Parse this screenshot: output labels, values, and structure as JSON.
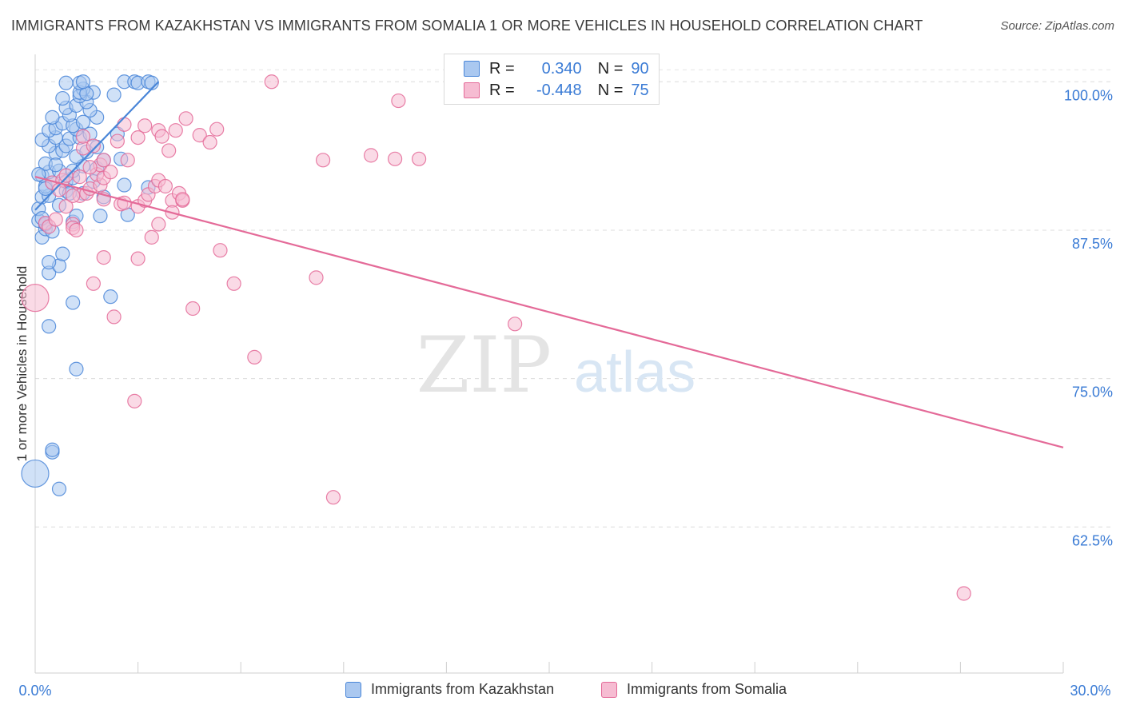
{
  "title": "IMMIGRANTS FROM KAZAKHSTAN VS IMMIGRANTS FROM SOMALIA 1 OR MORE VEHICLES IN HOUSEHOLD CORRELATION CHART",
  "source": "Source: ZipAtlas.com",
  "watermark": {
    "zip": "ZIP",
    "atlas": "atlas"
  },
  "legend_top": {
    "rows": [
      {
        "r_label": "R =",
        "r_value": "0.340",
        "n_label": "N =",
        "n_value": "90",
        "color": "#4a86d8",
        "fill": "#aac8f0"
      },
      {
        "r_label": "R =",
        "r_value": "-0.448",
        "n_label": "N =",
        "n_value": "75",
        "color": "#e46a98",
        "fill": "#f6bcd2"
      }
    ]
  },
  "legend_bottom": [
    "Immigrants from Kazakhstan",
    "Immigrants from Somalia"
  ],
  "chart_data": {
    "type": "scatter",
    "title": "IMMIGRANTS FROM KAZAKHSTAN VS IMMIGRANTS FROM SOMALIA 1 OR MORE VEHICLES IN HOUSEHOLD CORRELATION CHART",
    "xlabel": "",
    "ylabel": "1 or more Vehicles in Household",
    "xlim": [
      0,
      30
    ],
    "ylim": [
      50.2,
      101.5
    ],
    "x_tick_labels": [
      "0.0%",
      "30.0%"
    ],
    "y_ticks": [
      62.5,
      75.0,
      87.5,
      100.0
    ],
    "y_tick_labels": [
      "62.5%",
      "75.0%",
      "87.5%",
      "100.0%"
    ],
    "grid": true,
    "legend": "top-center",
    "series": [
      {
        "name": "Immigrants from Kazakhstan",
        "color": "#4a86d8",
        "fill": "#aac8f0",
        "trend": {
          "x": [
            0.0,
            3.6
          ],
          "y": [
            89.2,
            100.0
          ]
        },
        "points": [
          [
            0.0,
            67.0
          ],
          [
            0.5,
            68.8
          ],
          [
            0.5,
            69.0
          ],
          [
            0.7,
            65.7
          ],
          [
            1.2,
            75.8
          ],
          [
            0.4,
            79.4
          ],
          [
            1.1,
            81.4
          ],
          [
            2.2,
            81.9
          ],
          [
            0.4,
            83.9
          ],
          [
            0.7,
            84.5
          ],
          [
            0.8,
            85.5
          ],
          [
            0.4,
            84.8
          ],
          [
            0.2,
            86.9
          ],
          [
            0.3,
            87.6
          ],
          [
            0.1,
            88.3
          ],
          [
            0.3,
            88.0
          ],
          [
            1.1,
            88.2
          ],
          [
            1.2,
            88.7
          ],
          [
            1.9,
            88.7
          ],
          [
            2.7,
            88.8
          ],
          [
            0.1,
            89.3
          ],
          [
            0.2,
            90.3
          ],
          [
            0.4,
            90.4
          ],
          [
            0.9,
            90.8
          ],
          [
            1.4,
            90.6
          ],
          [
            2.0,
            90.3
          ],
          [
            0.3,
            91.2
          ],
          [
            0.5,
            91.5
          ],
          [
            0.9,
            91.6
          ],
          [
            1.1,
            91.9
          ],
          [
            1.7,
            91.6
          ],
          [
            2.6,
            91.3
          ],
          [
            3.3,
            91.1
          ],
          [
            0.2,
            92.1
          ],
          [
            0.4,
            92.4
          ],
          [
            0.7,
            92.5
          ],
          [
            1.1,
            92.5
          ],
          [
            1.4,
            92.9
          ],
          [
            1.8,
            92.7
          ],
          [
            2.0,
            93.4
          ],
          [
            2.5,
            93.5
          ],
          [
            0.3,
            93.1
          ],
          [
            0.6,
            94.0
          ],
          [
            0.8,
            94.2
          ],
          [
            1.2,
            93.7
          ],
          [
            1.5,
            94.1
          ],
          [
            0.4,
            94.6
          ],
          [
            0.9,
            94.6
          ],
          [
            0.2,
            95.1
          ],
          [
            0.6,
            95.3
          ],
          [
            1.0,
            95.2
          ],
          [
            1.3,
            95.3
          ],
          [
            1.6,
            95.6
          ],
          [
            2.4,
            95.6
          ],
          [
            0.4,
            95.9
          ],
          [
            0.6,
            96.1
          ],
          [
            1.2,
            96.0
          ],
          [
            0.8,
            96.5
          ],
          [
            1.1,
            96.3
          ],
          [
            1.4,
            96.6
          ],
          [
            1.8,
            97.0
          ],
          [
            0.5,
            97.0
          ],
          [
            1.0,
            97.2
          ],
          [
            1.6,
            97.6
          ],
          [
            0.9,
            97.8
          ],
          [
            1.2,
            98.0
          ],
          [
            1.5,
            98.3
          ],
          [
            0.8,
            98.6
          ],
          [
            1.3,
            98.8
          ],
          [
            1.7,
            99.1
          ],
          [
            1.4,
            99.4
          ],
          [
            2.3,
            98.9
          ],
          [
            1.3,
            99.1
          ],
          [
            1.5,
            99.0
          ],
          [
            0.9,
            99.9
          ],
          [
            1.3,
            99.9
          ],
          [
            1.4,
            100.0
          ],
          [
            2.6,
            100.0
          ],
          [
            2.9,
            100.0
          ],
          [
            3.0,
            99.9
          ],
          [
            3.3,
            100.0
          ],
          [
            3.4,
            99.9
          ],
          [
            0.1,
            92.2
          ],
          [
            0.6,
            93.0
          ],
          [
            1.8,
            94.5
          ],
          [
            0.3,
            91.0
          ],
          [
            1.0,
            90.6
          ],
          [
            0.2,
            88.5
          ],
          [
            0.5,
            87.4
          ],
          [
            0.7,
            89.6
          ]
        ]
      },
      {
        "name": "Immigrants from Somalia",
        "color": "#e46a98",
        "fill": "#f6bcd2",
        "trend": {
          "x": [
            0.0,
            30.0
          ],
          "y": [
            92.0,
            69.2
          ]
        },
        "points": [
          [
            0.0,
            81.8
          ],
          [
            0.3,
            88.1
          ],
          [
            0.4,
            87.8
          ],
          [
            0.6,
            88.4
          ],
          [
            1.1,
            88.0
          ],
          [
            1.1,
            87.7
          ],
          [
            1.2,
            87.5
          ],
          [
            0.9,
            89.5
          ],
          [
            1.3,
            90.4
          ],
          [
            1.5,
            90.6
          ],
          [
            1.6,
            91.0
          ],
          [
            1.9,
            91.3
          ],
          [
            0.5,
            91.5
          ],
          [
            0.8,
            91.7
          ],
          [
            1.3,
            92.0
          ],
          [
            1.8,
            92.2
          ],
          [
            1.9,
            93.0
          ],
          [
            2.0,
            93.4
          ],
          [
            2.7,
            93.4
          ],
          [
            1.4,
            94.4
          ],
          [
            1.7,
            94.6
          ],
          [
            2.4,
            95.0
          ],
          [
            3.0,
            95.3
          ],
          [
            2.6,
            96.4
          ],
          [
            3.2,
            96.3
          ],
          [
            3.6,
            95.9
          ],
          [
            3.7,
            95.4
          ],
          [
            4.1,
            95.9
          ],
          [
            4.4,
            96.9
          ],
          [
            4.8,
            95.5
          ],
          [
            5.1,
            94.9
          ],
          [
            5.3,
            96.0
          ],
          [
            2.0,
            90.1
          ],
          [
            2.5,
            89.7
          ],
          [
            2.6,
            89.8
          ],
          [
            3.0,
            89.5
          ],
          [
            3.2,
            90.0
          ],
          [
            3.3,
            90.5
          ],
          [
            3.5,
            91.2
          ],
          [
            3.6,
            91.7
          ],
          [
            3.8,
            91.2
          ],
          [
            4.0,
            90.0
          ],
          [
            4.2,
            90.6
          ],
          [
            4.3,
            90.0
          ],
          [
            4.0,
            89.0
          ],
          [
            3.6,
            88.0
          ],
          [
            3.4,
            86.9
          ],
          [
            3.0,
            85.1
          ],
          [
            2.0,
            85.2
          ],
          [
            1.7,
            83.0
          ],
          [
            2.3,
            80.2
          ],
          [
            4.6,
            80.9
          ],
          [
            5.4,
            85.8
          ],
          [
            5.8,
            83.0
          ],
          [
            6.4,
            76.8
          ],
          [
            8.2,
            83.5
          ],
          [
            8.4,
            93.4
          ],
          [
            9.8,
            93.8
          ],
          [
            10.5,
            93.5
          ],
          [
            11.2,
            93.5
          ],
          [
            10.6,
            98.4
          ],
          [
            6.9,
            100.0
          ],
          [
            14.0,
            79.6
          ],
          [
            8.7,
            65.0
          ],
          [
            27.1,
            56.9
          ],
          [
            2.9,
            73.1
          ],
          [
            4.3,
            90.1
          ],
          [
            0.9,
            92.1
          ],
          [
            1.4,
            95.4
          ],
          [
            2.0,
            91.9
          ],
          [
            3.9,
            94.2
          ],
          [
            1.1,
            90.4
          ],
          [
            0.7,
            90.9
          ],
          [
            1.6,
            92.8
          ],
          [
            2.2,
            92.4
          ]
        ]
      }
    ]
  }
}
